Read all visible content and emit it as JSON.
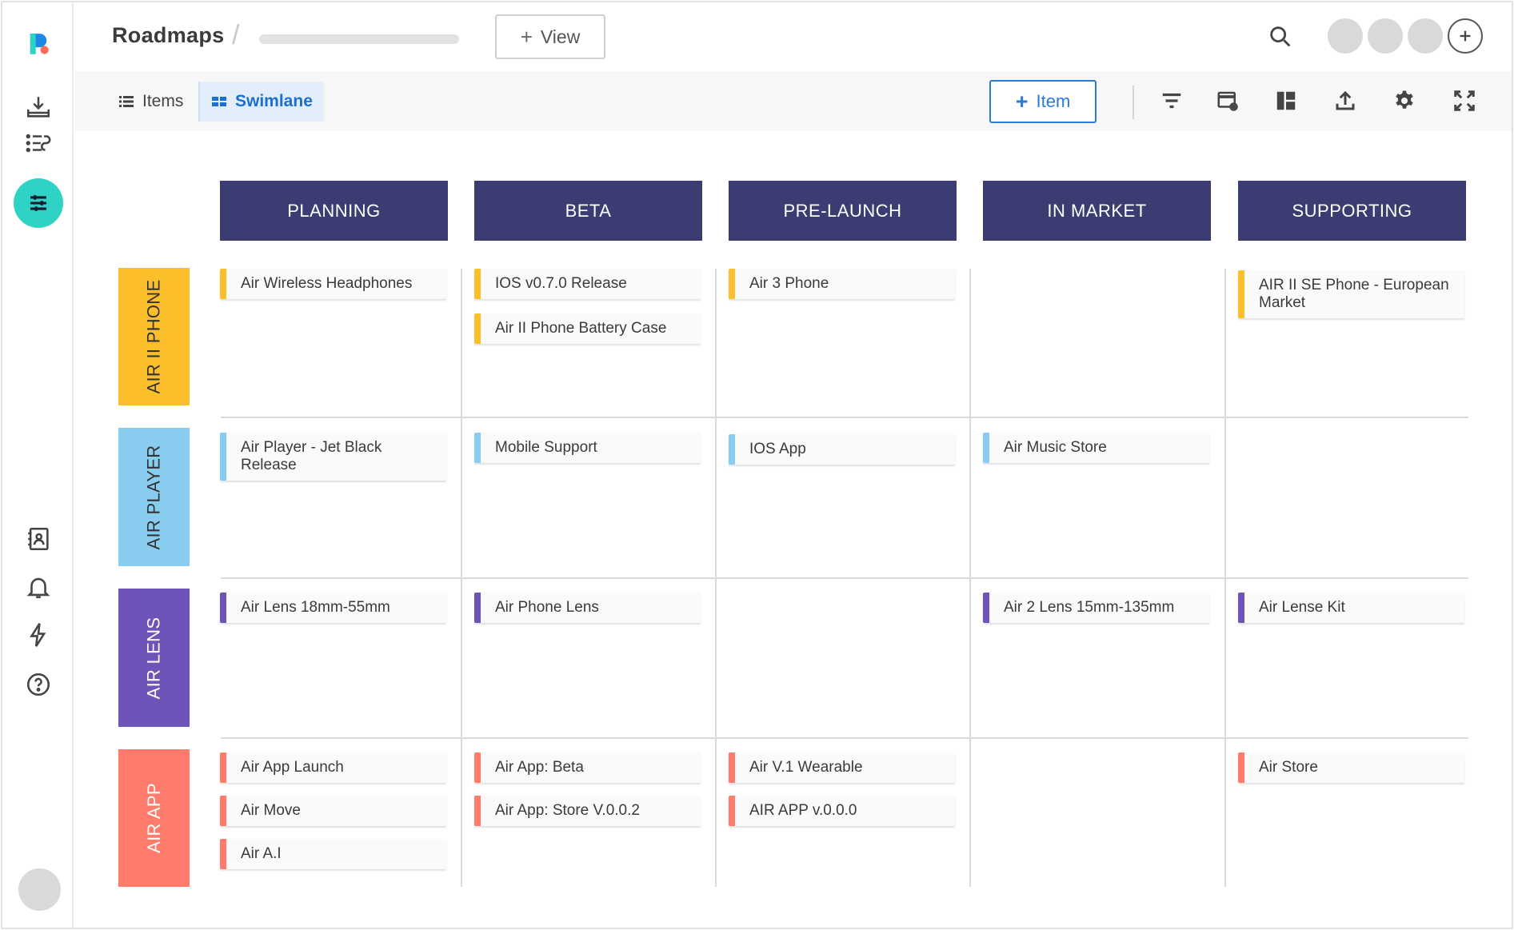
{
  "app": {
    "title": "Roadmaps"
  },
  "topbar": {
    "view_label": "View"
  },
  "toolbar": {
    "tabs": [
      {
        "label": "Items"
      },
      {
        "label": "Swimlane"
      }
    ],
    "item_label": "Item"
  },
  "colors": {
    "air_ii_phone": "#fbbf2c",
    "air_player": "#88cdf0",
    "air_lens": "#6e53b9",
    "air_app": "#ff7b6b",
    "header": "#3b3d72",
    "accent": "#2b7ad6",
    "rail_active": "#2ed3c6"
  },
  "board": {
    "columns": [
      "PLANNING",
      "BETA",
      "PRE-LAUNCH",
      "IN MARKET",
      "SUPPORTING"
    ],
    "lanes": [
      {
        "label": "AIR II PHONE"
      },
      {
        "label": "AIR PLAYER"
      },
      {
        "label": "AIR LENS"
      },
      {
        "label": "AIR APP"
      }
    ],
    "cards": {
      "phone_planning_1": "Air Wireless Headphones",
      "phone_beta_1": "IOS v0.7.0 Release",
      "phone_beta_2": "Air II Phone Battery Case",
      "phone_prelaunch_1": "Air 3 Phone",
      "phone_supporting_1": "AIR II SE Phone - European Market",
      "player_planning_1": "Air Player - Jet Black Release",
      "player_beta_1": "Mobile Support",
      "player_prelaunch_1": "IOS App",
      "player_inmarket_1": "Air Music Store",
      "lens_planning_1": "Air Lens 18mm-55mm",
      "lens_beta_1": "Air Phone Lens",
      "lens_inmarket_1": "Air 2 Lens 15mm-135mm",
      "lens_supporting_1": "Air Lense Kit",
      "app_planning_1": "Air App Launch",
      "app_planning_2": "Air Move",
      "app_planning_3": "Air A.I",
      "app_beta_1": "Air App: Beta",
      "app_beta_2": "Air App: Store V.0.0.2",
      "app_prelaunch_1": "Air V.1 Wearable",
      "app_prelaunch_2": "AIR APP v.0.0.0",
      "app_supporting_1": "Air Store"
    }
  }
}
